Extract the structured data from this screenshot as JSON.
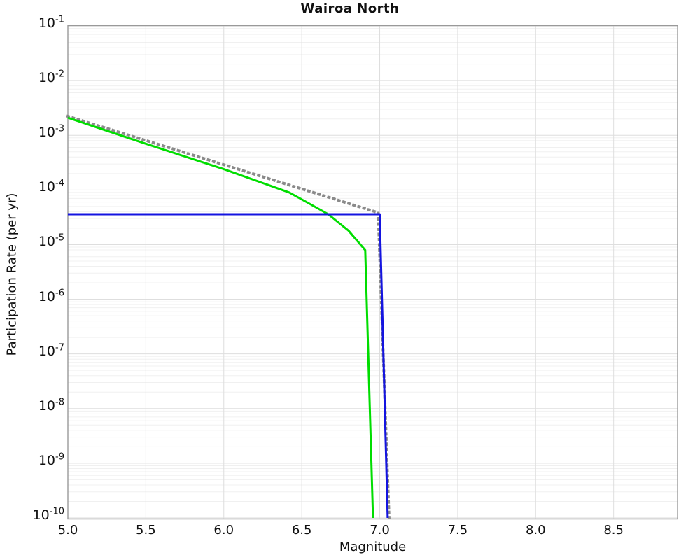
{
  "title": "Wairoa North",
  "axes": {
    "x": {
      "label": "Magnitude",
      "min": 5.0,
      "max": 8.91,
      "tick_values": [
        5.0,
        5.5,
        6.0,
        6.5,
        7.0,
        7.5,
        8.0,
        8.5
      ],
      "tick_labels": [
        "5.0",
        "5.5",
        "6.0",
        "6.5",
        "7.0",
        "7.5",
        "8.0",
        "8.5"
      ]
    },
    "y": {
      "label": "Participation Rate (per yr)",
      "scale": "log",
      "min_exponent": -10,
      "max_exponent": -1,
      "tick_exponents": [
        -1,
        -2,
        -3,
        -4,
        -5,
        -6,
        -7,
        -8,
        -9,
        -10
      ],
      "tick_base": "10"
    }
  },
  "colors": {
    "gray_dotted": "#8a8a8a",
    "green_solid": "#00dd00",
    "blue_solid": "#1414e0",
    "grid_major": "#dedede",
    "grid_minor": "#f0f0f0",
    "plot_border": "#999999",
    "text": "#111111"
  },
  "chart_data": {
    "type": "line",
    "title": "Wairoa North",
    "xlabel": "Magnitude",
    "ylabel": "Participation Rate (per yr)",
    "xlim": [
      5.0,
      8.91
    ],
    "ylim": [
      1e-10,
      0.1
    ],
    "yscale": "log",
    "grid": true,
    "legend_position": "none",
    "series": [
      {
        "name": "gray-dotted-gutenberg-richter",
        "color": "#8a8a8a",
        "style": "dotted",
        "width": 4,
        "points": [
          [
            5.0,
            0.00223
          ],
          [
            6.99,
            3.85e-05
          ],
          [
            7.06,
            1e-10
          ]
        ]
      },
      {
        "name": "green-solid-curve",
        "color": "#00dd00",
        "style": "solid",
        "width": 3,
        "points": [
          [
            5.0,
            0.0021
          ],
          [
            5.5,
            0.0007
          ],
          [
            6.0,
            0.00024
          ],
          [
            6.27,
            0.000128
          ],
          [
            6.42,
            9e-05
          ],
          [
            6.55,
            5.6e-05
          ],
          [
            6.67,
            3.6e-05
          ],
          [
            6.8,
            1.8e-05
          ],
          [
            6.907,
            7.9e-06
          ],
          [
            6.957,
            1e-10
          ]
        ]
      },
      {
        "name": "blue-solid-characteristic",
        "color": "#1414e0",
        "style": "solid",
        "width": 3,
        "points": [
          [
            5.0,
            3.6e-05
          ],
          [
            7.0,
            3.6e-05
          ],
          [
            7.051,
            1e-10
          ]
        ]
      }
    ]
  }
}
